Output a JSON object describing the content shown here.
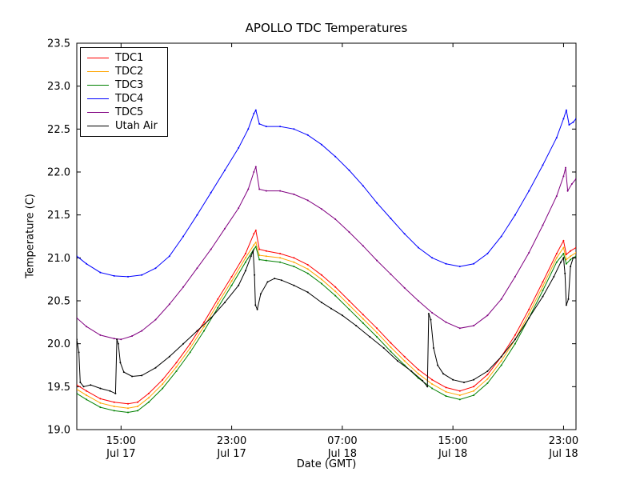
{
  "chart_data": {
    "type": "line",
    "title": "APOLLO TDC Temperatures",
    "xlabel": "Date (GMT)",
    "ylabel": "Temperature (C)",
    "grid": false,
    "legend_position": "upper left",
    "x_units": "hours since Jul 17 00:00 GMT",
    "xlim": [
      11.8,
      47.9
    ],
    "ylim": [
      19.0,
      23.5
    ],
    "yticks": [
      19.0,
      19.5,
      20.0,
      20.5,
      21.0,
      21.5,
      22.0,
      22.5,
      23.0,
      23.5
    ],
    "xticks": [
      {
        "h": 15,
        "time": "15:00",
        "date": "Jul 17"
      },
      {
        "h": 23,
        "time": "23:00",
        "date": "Jul 17"
      },
      {
        "h": 31,
        "time": "07:00",
        "date": "Jul 18"
      },
      {
        "h": 39,
        "time": "15:00",
        "date": "Jul 18"
      },
      {
        "h": 47,
        "time": "23:00",
        "date": "Jul 18"
      }
    ],
    "series": [
      {
        "name": "TDC1",
        "color": "#ff0000",
        "points": [
          [
            11.8,
            19.52
          ],
          [
            12.5,
            19.45
          ],
          [
            13.5,
            19.36
          ],
          [
            14.5,
            19.32
          ],
          [
            15.5,
            19.3
          ],
          [
            16.2,
            19.32
          ],
          [
            17,
            19.42
          ],
          [
            18,
            19.58
          ],
          [
            19,
            19.78
          ],
          [
            20,
            20.0
          ],
          [
            21,
            20.25
          ],
          [
            22,
            20.52
          ],
          [
            23,
            20.78
          ],
          [
            24,
            21.05
          ],
          [
            24.6,
            21.28
          ],
          [
            24.75,
            21.32
          ],
          [
            25.0,
            21.1
          ],
          [
            25.5,
            21.08
          ],
          [
            26.5,
            21.05
          ],
          [
            27.5,
            21.0
          ],
          [
            28.5,
            20.92
          ],
          [
            29.5,
            20.8
          ],
          [
            30.5,
            20.66
          ],
          [
            31.5,
            20.5
          ],
          [
            32.5,
            20.34
          ],
          [
            33.5,
            20.18
          ],
          [
            34.5,
            20.01
          ],
          [
            35.5,
            19.85
          ],
          [
            36.5,
            19.7
          ],
          [
            37.5,
            19.58
          ],
          [
            38.5,
            19.49
          ],
          [
            39.5,
            19.45
          ],
          [
            40.5,
            19.5
          ],
          [
            41.5,
            19.64
          ],
          [
            42.5,
            19.85
          ],
          [
            43.5,
            20.1
          ],
          [
            44.5,
            20.4
          ],
          [
            45.5,
            20.72
          ],
          [
            46.5,
            21.05
          ],
          [
            47.0,
            21.2
          ],
          [
            47.2,
            21.04
          ],
          [
            47.5,
            21.08
          ],
          [
            47.9,
            21.12
          ]
        ]
      },
      {
        "name": "TDC2",
        "color": "#ffa500",
        "points": [
          [
            11.8,
            19.47
          ],
          [
            12.5,
            19.4
          ],
          [
            13.5,
            19.31
          ],
          [
            14.5,
            19.27
          ],
          [
            15.5,
            19.25
          ],
          [
            16.2,
            19.27
          ],
          [
            17,
            19.37
          ],
          [
            18,
            19.53
          ],
          [
            19,
            19.73
          ],
          [
            20,
            19.95
          ],
          [
            21,
            20.2
          ],
          [
            22,
            20.47
          ],
          [
            23,
            20.73
          ],
          [
            24,
            21.0
          ],
          [
            24.6,
            21.15
          ],
          [
            24.75,
            21.18
          ],
          [
            25.0,
            21.03
          ],
          [
            25.5,
            21.02
          ],
          [
            26.5,
            21.0
          ],
          [
            27.5,
            20.95
          ],
          [
            28.5,
            20.87
          ],
          [
            29.5,
            20.75
          ],
          [
            30.5,
            20.61
          ],
          [
            31.5,
            20.45
          ],
          [
            32.5,
            20.29
          ],
          [
            33.5,
            20.13
          ],
          [
            34.5,
            19.96
          ],
          [
            35.5,
            19.8
          ],
          [
            36.5,
            19.65
          ],
          [
            37.5,
            19.53
          ],
          [
            38.5,
            19.44
          ],
          [
            39.5,
            19.4
          ],
          [
            40.5,
            19.45
          ],
          [
            41.5,
            19.59
          ],
          [
            42.5,
            19.8
          ],
          [
            43.5,
            20.05
          ],
          [
            44.5,
            20.35
          ],
          [
            45.5,
            20.67
          ],
          [
            46.5,
            21.0
          ],
          [
            47.0,
            21.12
          ],
          [
            47.2,
            20.98
          ],
          [
            47.5,
            21.02
          ],
          [
            47.9,
            21.06
          ]
        ]
      },
      {
        "name": "TDC3",
        "color": "#008000",
        "points": [
          [
            11.8,
            19.42
          ],
          [
            12.5,
            19.35
          ],
          [
            13.5,
            19.26
          ],
          [
            14.5,
            19.22
          ],
          [
            15.5,
            19.2
          ],
          [
            16.2,
            19.22
          ],
          [
            17,
            19.32
          ],
          [
            18,
            19.48
          ],
          [
            19,
            19.68
          ],
          [
            20,
            19.9
          ],
          [
            21,
            20.15
          ],
          [
            22,
            20.42
          ],
          [
            23,
            20.68
          ],
          [
            24,
            20.95
          ],
          [
            24.6,
            21.1
          ],
          [
            24.75,
            21.13
          ],
          [
            25.0,
            20.98
          ],
          [
            25.5,
            20.97
          ],
          [
            26.5,
            20.95
          ],
          [
            27.5,
            20.9
          ],
          [
            28.5,
            20.82
          ],
          [
            29.5,
            20.7
          ],
          [
            30.5,
            20.56
          ],
          [
            31.5,
            20.4
          ],
          [
            32.5,
            20.24
          ],
          [
            33.5,
            20.08
          ],
          [
            34.5,
            19.91
          ],
          [
            35.5,
            19.75
          ],
          [
            36.5,
            19.6
          ],
          [
            37.5,
            19.48
          ],
          [
            38.5,
            19.39
          ],
          [
            39.5,
            19.35
          ],
          [
            40.5,
            19.4
          ],
          [
            41.5,
            19.54
          ],
          [
            42.5,
            19.75
          ],
          [
            43.5,
            20.0
          ],
          [
            44.5,
            20.3
          ],
          [
            45.5,
            20.62
          ],
          [
            46.5,
            20.95
          ],
          [
            47.0,
            21.05
          ],
          [
            47.2,
            20.93
          ],
          [
            47.5,
            20.98
          ],
          [
            47.9,
            21.02
          ]
        ]
      },
      {
        "name": "TDC4",
        "color": "#0000ff",
        "points": [
          [
            11.8,
            21.02
          ],
          [
            12.5,
            20.93
          ],
          [
            13.5,
            20.83
          ],
          [
            14.5,
            20.79
          ],
          [
            15.5,
            20.78
          ],
          [
            16.5,
            20.8
          ],
          [
            17.5,
            20.88
          ],
          [
            18.5,
            21.02
          ],
          [
            19.5,
            21.25
          ],
          [
            20.5,
            21.5
          ],
          [
            21.5,
            21.76
          ],
          [
            22.5,
            22.02
          ],
          [
            23.5,
            22.28
          ],
          [
            24.2,
            22.5
          ],
          [
            24.6,
            22.68
          ],
          [
            24.75,
            22.72
          ],
          [
            25.0,
            22.56
          ],
          [
            25.5,
            22.53
          ],
          [
            26.5,
            22.53
          ],
          [
            27.5,
            22.5
          ],
          [
            28.5,
            22.43
          ],
          [
            29.5,
            22.32
          ],
          [
            30.5,
            22.18
          ],
          [
            31.5,
            22.02
          ],
          [
            32.5,
            21.84
          ],
          [
            33.5,
            21.64
          ],
          [
            34.5,
            21.46
          ],
          [
            35.5,
            21.28
          ],
          [
            36.5,
            21.12
          ],
          [
            37.5,
            21.0
          ],
          [
            38.5,
            20.93
          ],
          [
            39.5,
            20.9
          ],
          [
            40.5,
            20.93
          ],
          [
            41.5,
            21.05
          ],
          [
            42.5,
            21.25
          ],
          [
            43.5,
            21.5
          ],
          [
            44.5,
            21.78
          ],
          [
            45.5,
            22.08
          ],
          [
            46.5,
            22.4
          ],
          [
            47.0,
            22.62
          ],
          [
            47.2,
            22.72
          ],
          [
            47.4,
            22.55
          ],
          [
            47.7,
            22.58
          ],
          [
            47.9,
            22.62
          ]
        ]
      },
      {
        "name": "TDC5",
        "color": "#800080",
        "points": [
          [
            11.8,
            20.3
          ],
          [
            12.5,
            20.2
          ],
          [
            13.5,
            20.1
          ],
          [
            14.5,
            20.06
          ],
          [
            15.0,
            20.05
          ],
          [
            15.8,
            20.09
          ],
          [
            16.5,
            20.15
          ],
          [
            17.5,
            20.28
          ],
          [
            18.5,
            20.46
          ],
          [
            19.5,
            20.66
          ],
          [
            20.5,
            20.88
          ],
          [
            21.5,
            21.1
          ],
          [
            22.5,
            21.34
          ],
          [
            23.5,
            21.58
          ],
          [
            24.2,
            21.8
          ],
          [
            24.6,
            22.0
          ],
          [
            24.75,
            22.06
          ],
          [
            25.0,
            21.8
          ],
          [
            25.5,
            21.78
          ],
          [
            26.5,
            21.78
          ],
          [
            27.5,
            21.74
          ],
          [
            28.5,
            21.67
          ],
          [
            29.5,
            21.57
          ],
          [
            30.5,
            21.45
          ],
          [
            31.5,
            21.3
          ],
          [
            32.5,
            21.14
          ],
          [
            33.5,
            20.97
          ],
          [
            34.5,
            20.81
          ],
          [
            35.5,
            20.65
          ],
          [
            36.5,
            20.5
          ],
          [
            37.5,
            20.36
          ],
          [
            38.5,
            20.25
          ],
          [
            39.5,
            20.18
          ],
          [
            40.5,
            20.21
          ],
          [
            41.5,
            20.33
          ],
          [
            42.5,
            20.52
          ],
          [
            43.5,
            20.78
          ],
          [
            44.5,
            21.06
          ],
          [
            45.5,
            21.38
          ],
          [
            46.5,
            21.72
          ],
          [
            47.0,
            21.95
          ],
          [
            47.15,
            22.05
          ],
          [
            47.3,
            21.78
          ],
          [
            47.6,
            21.86
          ],
          [
            47.9,
            21.92
          ]
        ]
      },
      {
        "name": "Utah Air",
        "color": "#000000",
        "points": [
          [
            11.8,
            20.05
          ],
          [
            11.95,
            19.9
          ],
          [
            12.05,
            19.55
          ],
          [
            12.3,
            19.5
          ],
          [
            12.8,
            19.52
          ],
          [
            13.5,
            19.48
          ],
          [
            14.2,
            19.45
          ],
          [
            14.6,
            19.42
          ],
          [
            14.7,
            20.05
          ],
          [
            14.8,
            20.0
          ],
          [
            14.95,
            19.78
          ],
          [
            15.2,
            19.67
          ],
          [
            15.8,
            19.62
          ],
          [
            16.5,
            19.63
          ],
          [
            17.5,
            19.72
          ],
          [
            18.5,
            19.85
          ],
          [
            19.5,
            20.0
          ],
          [
            20.5,
            20.15
          ],
          [
            21.5,
            20.3
          ],
          [
            22.5,
            20.48
          ],
          [
            23.5,
            20.68
          ],
          [
            24.0,
            20.85
          ],
          [
            24.4,
            21.02
          ],
          [
            24.55,
            21.08
          ],
          [
            24.65,
            20.8
          ],
          [
            24.72,
            20.45
          ],
          [
            24.85,
            20.4
          ],
          [
            25.1,
            20.58
          ],
          [
            25.6,
            20.72
          ],
          [
            26.1,
            20.76
          ],
          [
            26.6,
            20.74
          ],
          [
            27.5,
            20.68
          ],
          [
            28.5,
            20.6
          ],
          [
            29.5,
            20.48
          ],
          [
            30.2,
            20.41
          ],
          [
            31.0,
            20.33
          ],
          [
            32.0,
            20.21
          ],
          [
            33.0,
            20.08
          ],
          [
            34.0,
            19.95
          ],
          [
            35.0,
            19.8
          ],
          [
            36.0,
            19.68
          ],
          [
            36.8,
            19.57
          ],
          [
            37.15,
            19.5
          ],
          [
            37.25,
            20.35
          ],
          [
            37.4,
            20.28
          ],
          [
            37.6,
            19.95
          ],
          [
            37.9,
            19.75
          ],
          [
            38.3,
            19.65
          ],
          [
            39.0,
            19.58
          ],
          [
            39.8,
            19.55
          ],
          [
            40.5,
            19.58
          ],
          [
            41.5,
            19.68
          ],
          [
            42.5,
            19.85
          ],
          [
            43.5,
            20.05
          ],
          [
            44.5,
            20.3
          ],
          [
            45.5,
            20.55
          ],
          [
            46.3,
            20.78
          ],
          [
            46.8,
            20.95
          ],
          [
            47.0,
            21.0
          ],
          [
            47.1,
            20.82
          ],
          [
            47.2,
            20.45
          ],
          [
            47.35,
            20.52
          ],
          [
            47.5,
            20.9
          ],
          [
            47.7,
            21.0
          ],
          [
            47.9,
            21.0
          ]
        ]
      }
    ]
  }
}
